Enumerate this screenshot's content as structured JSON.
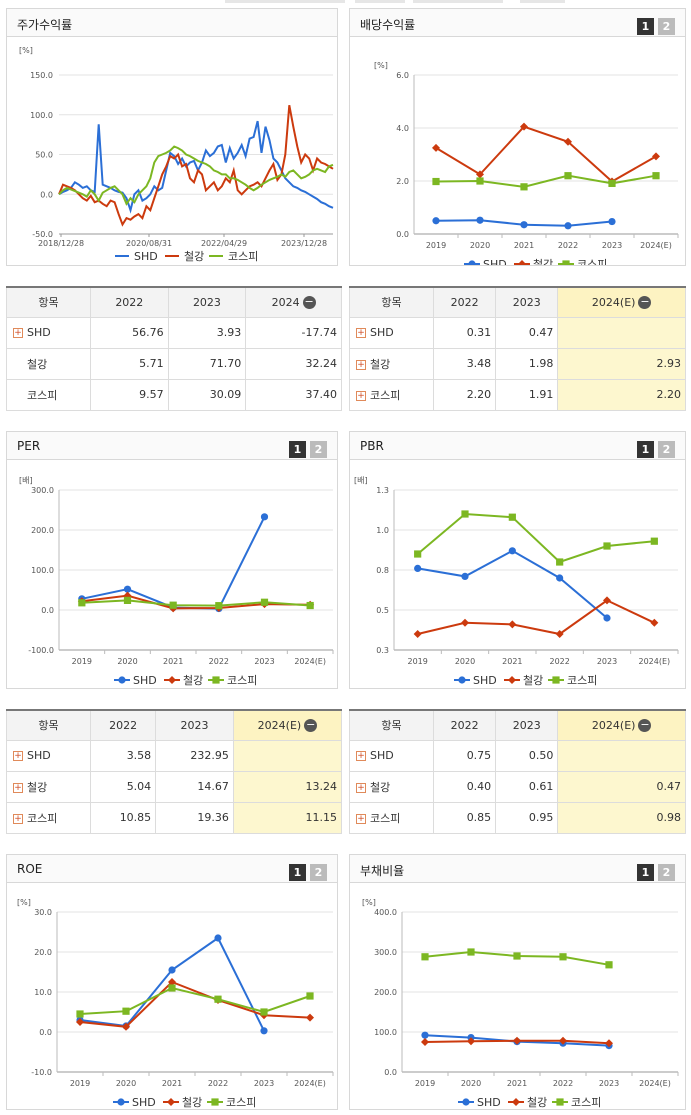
{
  "colors": {
    "shd": "#2b6fd6",
    "steel": "#cc3a0e",
    "kospi": "#7cb722"
  },
  "legend": {
    "shd": "SHD",
    "steel": "철강",
    "kospi": "코스피"
  },
  "pages": {
    "p1": "1",
    "p2": "2"
  },
  "stock_return": {
    "title": "주가수익률",
    "table": {
      "col_item": "항목",
      "years": [
        "2022",
        "2023",
        "2024"
      ],
      "rows": [
        {
          "name": "SHD",
          "icon": true,
          "values": [
            "56.76",
            "3.93",
            "-17.74"
          ]
        },
        {
          "name": "철강",
          "icon": false,
          "values": [
            "5.71",
            "71.70",
            "32.24"
          ]
        },
        {
          "name": "코스피",
          "icon": false,
          "values": [
            "9.57",
            "30.09",
            "37.40"
          ]
        }
      ]
    }
  },
  "dividend": {
    "title": "배당수익률",
    "table": {
      "col_item": "항목",
      "years": [
        "2022",
        "2023",
        "2024(E)"
      ],
      "rows": [
        {
          "name": "SHD",
          "icon": true,
          "values": [
            "0.31",
            "0.47",
            ""
          ]
        },
        {
          "name": "철강",
          "icon": true,
          "values": [
            "3.48",
            "1.98",
            "2.93"
          ]
        },
        {
          "name": "코스피",
          "icon": true,
          "values": [
            "2.20",
            "1.91",
            "2.20"
          ]
        }
      ]
    }
  },
  "per": {
    "title": "PER",
    "table": {
      "col_item": "항목",
      "years": [
        "2022",
        "2023",
        "2024(E)"
      ],
      "rows": [
        {
          "name": "SHD",
          "icon": true,
          "values": [
            "3.58",
            "232.95",
            ""
          ]
        },
        {
          "name": "철강",
          "icon": true,
          "values": [
            "5.04",
            "14.67",
            "13.24"
          ]
        },
        {
          "name": "코스피",
          "icon": true,
          "values": [
            "10.85",
            "19.36",
            "11.15"
          ]
        }
      ]
    }
  },
  "pbr": {
    "title": "PBR",
    "table": {
      "col_item": "항목",
      "years": [
        "2022",
        "2023",
        "2024(E)"
      ],
      "rows": [
        {
          "name": "SHD",
          "icon": true,
          "values": [
            "0.75",
            "0.50",
            ""
          ]
        },
        {
          "name": "철강",
          "icon": true,
          "values": [
            "0.40",
            "0.61",
            "0.47"
          ]
        },
        {
          "name": "코스피",
          "icon": true,
          "values": [
            "0.85",
            "0.95",
            "0.98"
          ]
        }
      ]
    }
  },
  "roe": {
    "title": "ROE"
  },
  "debt": {
    "title": "부채비율"
  },
  "chart_data": [
    {
      "id": "stock",
      "type": "line",
      "unit": "[%]",
      "ylim": [
        -50,
        150
      ],
      "yticks": [
        "150.0",
        "100.0",
        "50.0",
        "0.0",
        "-50.0"
      ],
      "xticks": [
        "2018/12/28",
        "2020/08/31",
        "2022/04/29",
        "2023/12/28"
      ],
      "n_points": 70,
      "series": [
        {
          "key": "shd",
          "name": "SHD",
          "values": [
            0,
            3,
            5,
            8,
            15,
            12,
            8,
            10,
            5,
            3,
            88,
            12,
            10,
            8,
            5,
            3,
            2,
            -5,
            -20,
            0,
            5,
            -8,
            -5,
            0,
            10,
            5,
            8,
            30,
            52,
            48,
            38,
            45,
            35,
            40,
            42,
            30,
            40,
            55,
            48,
            52,
            60,
            62,
            40,
            58,
            45,
            52,
            62,
            48,
            70,
            72,
            92,
            52,
            85,
            68,
            45,
            40,
            30,
            20,
            15,
            10,
            8,
            5,
            3,
            0,
            -3,
            -6,
            -10,
            -12,
            -15,
            -17
          ]
        },
        {
          "key": "steel",
          "name": "철강",
          "values": [
            0,
            12,
            10,
            8,
            5,
            0,
            -5,
            -8,
            -2,
            -10,
            -8,
            -12,
            -15,
            -8,
            -10,
            -25,
            -38,
            -30,
            -32,
            -28,
            -25,
            -30,
            -15,
            -20,
            -5,
            10,
            25,
            35,
            48,
            45,
            50,
            35,
            38,
            20,
            15,
            30,
            25,
            5,
            10,
            15,
            5,
            10,
            20,
            15,
            30,
            5,
            0,
            5,
            10,
            12,
            15,
            10,
            20,
            30,
            38,
            18,
            25,
            50,
            112,
            85,
            60,
            40,
            50,
            45,
            30,
            45,
            40,
            38,
            35,
            32
          ]
        },
        {
          "key": "kospi",
          "name": "코스피",
          "values": [
            0,
            5,
            8,
            6,
            4,
            2,
            0,
            -3,
            5,
            0,
            -8,
            2,
            5,
            8,
            10,
            5,
            0,
            -12,
            -5,
            -10,
            0,
            5,
            10,
            20,
            40,
            48,
            50,
            52,
            55,
            60,
            58,
            55,
            50,
            48,
            45,
            42,
            40,
            38,
            35,
            30,
            28,
            25,
            25,
            20,
            20,
            18,
            15,
            12,
            8,
            5,
            8,
            12,
            15,
            18,
            20,
            22,
            25,
            22,
            28,
            30,
            25,
            20,
            22,
            25,
            30,
            32,
            30,
            28,
            35,
            37
          ]
        }
      ]
    },
    {
      "id": "dividend",
      "type": "line",
      "unit": "[%]",
      "ylim": [
        0,
        6
      ],
      "yticks": [
        "6.0",
        "4.0",
        "2.0",
        "0.0"
      ],
      "categories": [
        "2019",
        "2020",
        "2021",
        "2022",
        "2023",
        "2024(E)"
      ],
      "series": [
        {
          "key": "shd",
          "name": "SHD",
          "values": [
            0.5,
            0.52,
            0.35,
            0.31,
            0.47,
            null
          ]
        },
        {
          "key": "steel",
          "name": "철강",
          "values": [
            3.25,
            2.25,
            4.05,
            3.48,
            1.98,
            2.93
          ]
        },
        {
          "key": "kospi",
          "name": "코스피",
          "values": [
            1.98,
            2.0,
            1.78,
            2.2,
            1.91,
            2.2
          ]
        }
      ]
    },
    {
      "id": "per",
      "type": "line",
      "unit": "[배]",
      "ylim": [
        -100,
        300
      ],
      "yticks": [
        "300.0",
        "200.0",
        "100.0",
        "0.0",
        "-100.0"
      ],
      "categories": [
        "2019",
        "2020",
        "2021",
        "2022",
        "2023",
        "2024(E)"
      ],
      "series": [
        {
          "key": "shd",
          "name": "SHD",
          "values": [
            28,
            52,
            6,
            3.58,
            232.95,
            null
          ]
        },
        {
          "key": "steel",
          "name": "철강",
          "values": [
            22,
            36,
            4,
            5.04,
            14.67,
            13.24
          ]
        },
        {
          "key": "kospi",
          "name": "코스피",
          "values": [
            18,
            24,
            12,
            10.85,
            19.36,
            11.15
          ]
        }
      ]
    },
    {
      "id": "pbr",
      "type": "line",
      "unit": "[배]",
      "ylim": [
        0.3,
        1.3
      ],
      "yticks": [
        "1.3",
        "1.0",
        "0.8",
        "0.5",
        "0.3"
      ],
      "categories": [
        "2019",
        "2020",
        "2021",
        "2022",
        "2023",
        "2024(E)"
      ],
      "series": [
        {
          "key": "shd",
          "name": "SHD",
          "values": [
            0.81,
            0.76,
            0.92,
            0.75,
            0.5,
            null
          ]
        },
        {
          "key": "steel",
          "name": "철강",
          "values": [
            0.4,
            0.47,
            0.46,
            0.4,
            0.61,
            0.47
          ]
        },
        {
          "key": "kospi",
          "name": "코스피",
          "values": [
            0.9,
            1.15,
            1.13,
            0.85,
            0.95,
            0.98
          ]
        }
      ]
    },
    {
      "id": "roe",
      "type": "line",
      "unit": "[%]",
      "ylim": [
        -10,
        30
      ],
      "yticks": [
        "30.0",
        "20.0",
        "10.0",
        "0.0",
        "-10.0"
      ],
      "categories": [
        "2019",
        "2020",
        "2021",
        "2022",
        "2023",
        "2024(E)"
      ],
      "series": [
        {
          "key": "shd",
          "name": "SHD",
          "values": [
            3,
            1.5,
            15.5,
            23.5,
            0.3,
            null
          ]
        },
        {
          "key": "steel",
          "name": "철강",
          "values": [
            2.5,
            1.3,
            12.5,
            8.0,
            4.2,
            3.6
          ]
        },
        {
          "key": "kospi",
          "name": "코스피",
          "values": [
            4.5,
            5.2,
            11.0,
            8.2,
            5.0,
            9.0
          ]
        }
      ]
    },
    {
      "id": "debt",
      "type": "line",
      "unit": "[%]",
      "ylim": [
        0,
        400
      ],
      "yticks": [
        "400.0",
        "300.0",
        "200.0",
        "100.0",
        "0.0"
      ],
      "categories": [
        "2019",
        "2020",
        "2021",
        "2022",
        "2023",
        "2024(E)"
      ],
      "series": [
        {
          "key": "shd",
          "name": "SHD",
          "values": [
            92,
            86,
            76,
            72,
            66,
            null
          ]
        },
        {
          "key": "steel",
          "name": "철강",
          "values": [
            75,
            77,
            78,
            78,
            72,
            null
          ]
        },
        {
          "key": "kospi",
          "name": "코스피",
          "values": [
            288,
            300,
            290,
            288,
            268,
            null
          ]
        }
      ]
    }
  ]
}
